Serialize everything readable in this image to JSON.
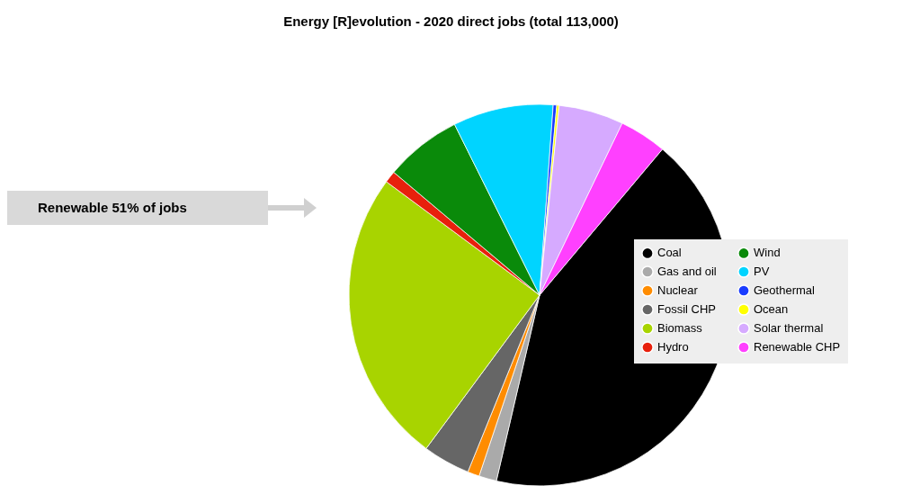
{
  "chart_data": {
    "type": "pie",
    "title": "Energy [R]evolution - 2020 direct jobs (total 113,000)",
    "categories": [
      "Coal",
      "Gas and oil",
      "Nuclear",
      "Fossil CHP",
      "Biomass",
      "Hydro",
      "Wind",
      "PV",
      "Geothermal",
      "Ocean",
      "Solar thermal",
      "Renewable CHP"
    ],
    "values": [
      42.5,
      1.5,
      1,
      4,
      25,
      1,
      6.5,
      8.5,
      0.3,
      0.2,
      5.5,
      4
    ],
    "colors": [
      "#000000",
      "#aaaaaa",
      "#ff8c00",
      "#666666",
      "#a8d400",
      "#e8200c",
      "#0a8a0a",
      "#00d4ff",
      "#1a3cff",
      "#ffff00",
      "#d6aaff",
      "#ff40ff"
    ],
    "legend": "right",
    "annotations": [
      "Renewable 51% of jobs"
    ]
  }
}
